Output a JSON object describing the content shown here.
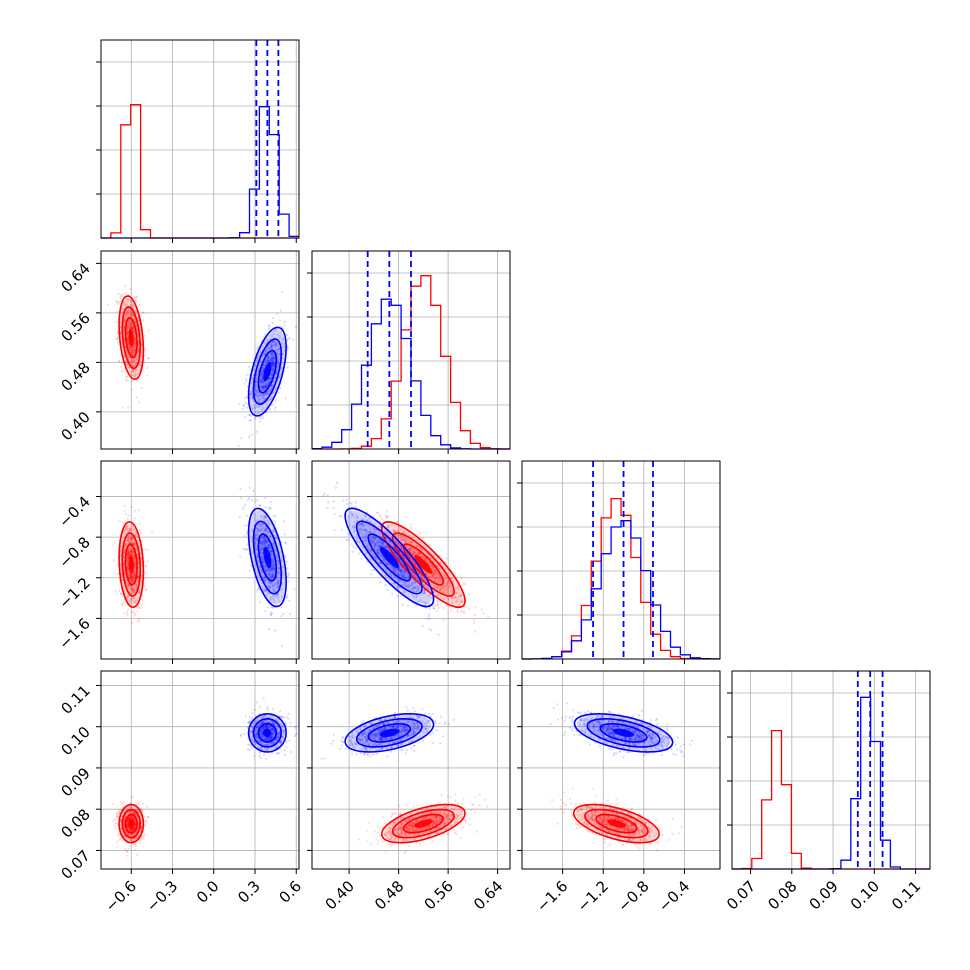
{
  "chart_data": {
    "type": "corner",
    "title": "",
    "legend": "none",
    "grid": true,
    "params": [
      {
        "key": "p0",
        "range": [
          -0.82,
          0.62
        ],
        "ticks": [
          -0.6,
          -0.3,
          0.0,
          0.3,
          0.6
        ],
        "tick_labels": [
          "−0.6",
          "−0.3",
          "0.0",
          "0.3",
          "0.6"
        ]
      },
      {
        "key": "p1",
        "range": [
          0.34,
          0.66
        ],
        "ticks": [
          0.4,
          0.48,
          0.56,
          0.64
        ],
        "tick_labels": [
          "0.40",
          "0.48",
          "0.56",
          "0.64"
        ]
      },
      {
        "key": "p2",
        "range": [
          -2.0,
          -0.05
        ],
        "ticks": [
          -1.6,
          -1.2,
          -0.8,
          -0.4
        ],
        "tick_labels": [
          "−1.6",
          "−1.2",
          "−0.8",
          "−0.4"
        ]
      },
      {
        "key": "p3",
        "range": [
          0.0655,
          0.1135
        ],
        "ticks": [
          0.07,
          0.08,
          0.09,
          0.1,
          0.11
        ],
        "tick_labels": [
          "0.07",
          "0.08",
          "0.09",
          "0.10",
          "0.11"
        ]
      }
    ],
    "series": [
      {
        "color": "#ff0000",
        "means": [
          -0.6,
          0.52,
          -1.07,
          0.0765
        ],
        "sds": [
          0.042,
          0.032,
          0.2,
          0.0022
        ],
        "corr": [
          [
            0,
            1,
            -0.3
          ],
          [
            0,
            2,
            -0.15
          ],
          [
            1,
            2,
            -0.85
          ],
          [
            1,
            3,
            0.55
          ],
          [
            2,
            3,
            -0.55
          ]
        ],
        "hist_peak": [
          1.0,
          0.98,
          0.9,
          0.78
        ],
        "quantiles": null
      },
      {
        "color": "#0000ff",
        "means": [
          0.39,
          0.465,
          -1.0,
          0.0985
        ],
        "sds": [
          0.065,
          0.034,
          0.23,
          0.0022
        ],
        "corr": [
          [
            0,
            1,
            0.55
          ],
          [
            0,
            2,
            -0.5
          ],
          [
            1,
            2,
            -0.85
          ],
          [
            1,
            3,
            0.45
          ],
          [
            2,
            3,
            -0.5
          ]
        ],
        "hist_peak": [
          0.78,
          0.85,
          0.78,
          1.0
        ],
        "quantiles": [
          [
            0.31,
            0.39,
            0.47
          ],
          [
            0.43,
            0.465,
            0.5
          ],
          [
            -1.3,
            -1.0,
            -0.71
          ],
          [
            0.096,
            0.099,
            0.102
          ]
        ]
      }
    ]
  }
}
